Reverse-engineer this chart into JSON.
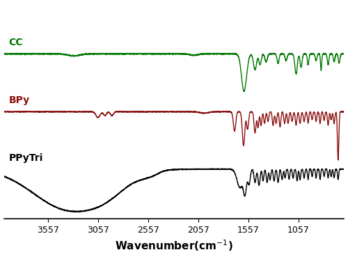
{
  "xlabel_display": "Wavenumber(cm$^{-1}$)",
  "xticks": [
    3557,
    3057,
    2557,
    2057,
    1557,
    1057
  ],
  "xticklabels": [
    "3557",
    "3057",
    "2557",
    "2057",
    "1557",
    "1057"
  ],
  "cc_label": "CC",
  "bpy_label": "BPy",
  "ppytri_label": "PPyTri",
  "cc_color": "#007700",
  "bpy_color": "#8B1010",
  "ppytri_color": "#000000",
  "background": "#ffffff",
  "label_fontsize": 10,
  "tick_fontsize": 9,
  "xlabel_fontsize": 11
}
